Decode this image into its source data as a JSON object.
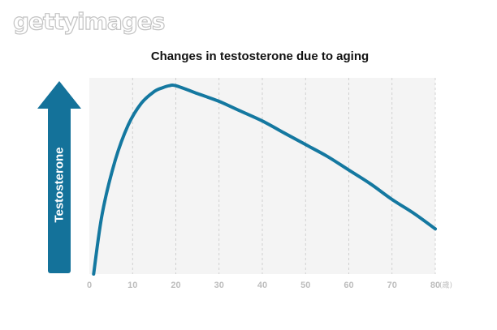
{
  "watermark": "gettyimages",
  "colors": {
    "curve": "#1478a0",
    "arrow": "#14729a",
    "plot_bg": "#f4f4f4",
    "grid": "#c8c8c8",
    "tick": "#bdbdbd"
  },
  "chart_data": {
    "type": "line",
    "title": "Changes in testosterone due to aging",
    "ylabel": "Testosterone",
    "xunit": "(歳)",
    "xlim": [
      0,
      80
    ],
    "ylim": [
      0,
      100
    ],
    "xticks": [
      0,
      10,
      20,
      30,
      40,
      50,
      60,
      70,
      80
    ],
    "grid": "vertical-dashed",
    "y_tick_labels": false,
    "series": [
      {
        "x": [
          1,
          3,
          6,
          9,
          12,
          15,
          17,
          18.5,
          20,
          25,
          30,
          35,
          40,
          45,
          50,
          55,
          60,
          65,
          70,
          75,
          80
        ],
        "values": [
          0,
          31,
          58,
          76,
          87,
          93,
          95,
          96,
          96,
          92,
          88,
          83,
          78,
          72,
          66,
          60,
          53,
          46,
          38,
          31,
          23
        ]
      }
    ]
  }
}
